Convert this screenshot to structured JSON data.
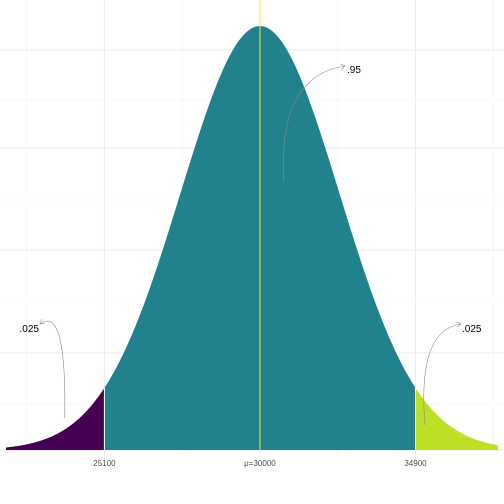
{
  "chart_data": {
    "type": "area",
    "title": "",
    "xlabel": "",
    "ylabel": "",
    "distribution": {
      "family": "normal",
      "mean": 30000,
      "sd": 2500
    },
    "xlim": [
      22000,
      37500
    ],
    "grid": true,
    "x_ticks": [
      {
        "value": 25100,
        "label": "25100"
      },
      {
        "value": 30000,
        "label": "μ=30000"
      },
      {
        "value": 34900,
        "label": "34900"
      }
    ],
    "regions": [
      {
        "from": 22000,
        "to": 25100,
        "color": "#440154",
        "probability": ".025"
      },
      {
        "from": 25100,
        "to": 34900,
        "color": "#21818c",
        "probability": ".95"
      },
      {
        "from": 34900,
        "to": 37500,
        "color": "#bddf26",
        "probability": ".025"
      }
    ],
    "mean_line": {
      "value": 30000,
      "color": "#fde725"
    },
    "cutoff_line_color": "#ffffff",
    "annotations": [
      {
        "text": ".025",
        "points_to": 24700
      },
      {
        "text": ".95",
        "points_to": 31000
      },
      {
        "text": ".025",
        "points_to": 35200
      }
    ]
  }
}
